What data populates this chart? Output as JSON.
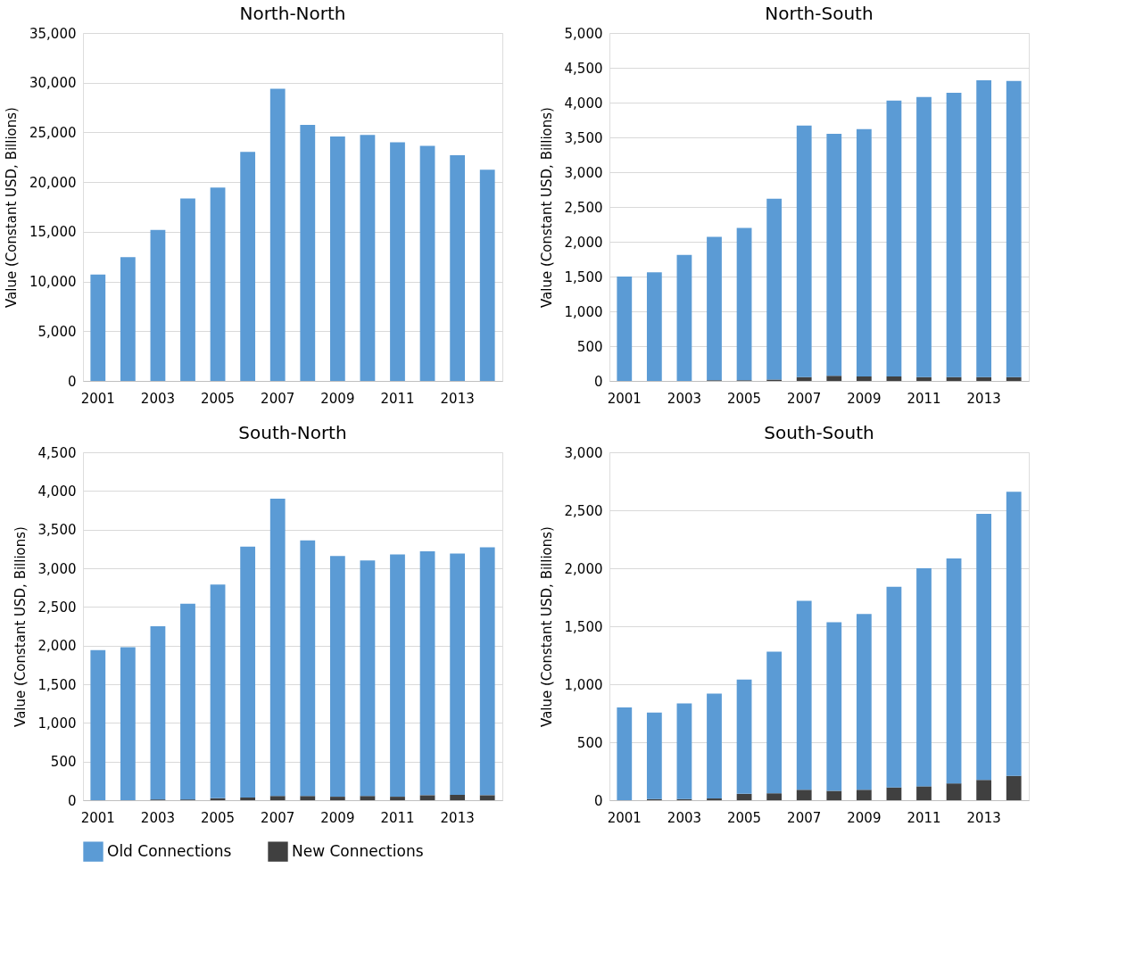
{
  "chart_data": [
    {
      "type": "bar",
      "title": "North-North",
      "ylabel": "Value (Constant USD, Billions)",
      "stacked": true,
      "grid": "y",
      "legend": "bottom",
      "categories": [
        "2001",
        null,
        "2003",
        null,
        "2005",
        null,
        "2007",
        null,
        "2009",
        null,
        "2011",
        null,
        "2013",
        null
      ],
      "ylim": [
        0,
        35000
      ],
      "yticks": [
        0,
        {
          "value": 5000,
          "label": "5,000"
        },
        {
          "value": 10000,
          "label": "10,000"
        },
        {
          "value": 15000,
          "label": "15,000"
        },
        {
          "value": 20000,
          "label": "20,000"
        },
        {
          "value": 25000,
          "label": "25,000"
        },
        {
          "value": 30000,
          "label": "30,000"
        },
        {
          "value": 35000,
          "label": "35,000"
        }
      ],
      "series": [
        {
          "name": "Old Connections",
          "color": "#5b9bd5",
          "values": [
            10700,
            12450,
            15200,
            18350,
            19450,
            23050,
            29400,
            25750,
            24600,
            24750,
            24000,
            23650,
            22700,
            21250
          ]
        }
      ]
    },
    {
      "type": "bar",
      "title": "North-South",
      "ylabel": "Value (Constant USD, Billions)",
      "stacked": true,
      "grid": "y",
      "legend": "bottom",
      "categories": [
        "2001",
        null,
        "2003",
        null,
        "2005",
        null,
        "2007",
        null,
        "2009",
        null,
        "2011",
        null,
        "2013",
        null
      ],
      "ylim": [
        0,
        5000
      ],
      "yticks": [
        0,
        500,
        {
          "value": 1000,
          "label": "1,000"
        },
        {
          "value": 1500,
          "label": "1,500"
        },
        {
          "value": 2000,
          "label": "2,000"
        },
        {
          "value": 2500,
          "label": "2,500"
        },
        {
          "value": 3000,
          "label": "3,000"
        },
        {
          "value": 3500,
          "label": "3,500"
        },
        {
          "value": 4000,
          "label": "4,000"
        },
        {
          "value": 4500,
          "label": "4,500"
        },
        {
          "value": 5000,
          "label": "5,000"
        }
      ],
      "series": [
        {
          "name": "New Connections",
          "color": "#404040",
          "values": [
            0,
            0,
            0,
            10,
            10,
            20,
            55,
            75,
            65,
            65,
            55,
            55,
            55,
            55
          ]
        },
        {
          "name": "Old Connections",
          "color": "#5b9bd5",
          "values": [
            1500,
            1560,
            1810,
            2060,
            2190,
            2600,
            3615,
            3475,
            3555,
            3965,
            4025,
            4085,
            4265,
            4255
          ]
        }
      ]
    },
    {
      "type": "bar",
      "title": "South-North",
      "ylabel": "Value (Constant USD, Billions)",
      "stacked": true,
      "grid": "y",
      "legend": "bottom",
      "categories": [
        "2001",
        null,
        "2003",
        null,
        "2005",
        null,
        "2007",
        null,
        "2009",
        null,
        "2011",
        null,
        "2013",
        null
      ],
      "ylim": [
        0,
        4500
      ],
      "yticks": [
        0,
        500,
        {
          "value": 1000,
          "label": "1,000"
        },
        {
          "value": 1500,
          "label": "1,500"
        },
        {
          "value": 2000,
          "label": "2,000"
        },
        {
          "value": 2500,
          "label": "2,500"
        },
        {
          "value": 3000,
          "label": "3,000"
        },
        {
          "value": 3500,
          "label": "3,500"
        },
        {
          "value": 4000,
          "label": "4,000"
        },
        {
          "value": 4500,
          "label": "4,500"
        }
      ],
      "series": [
        {
          "name": "New Connections",
          "color": "#404040",
          "values": [
            0,
            0,
            10,
            10,
            25,
            35,
            55,
            55,
            45,
            55,
            45,
            65,
            70,
            65
          ]
        },
        {
          "name": "Old Connections",
          "color": "#5b9bd5",
          "values": [
            1940,
            1980,
            2240,
            2530,
            2765,
            3245,
            3845,
            3305,
            3115,
            3045,
            3135,
            3155,
            3120,
            3205
          ]
        }
      ]
    },
    {
      "type": "bar",
      "title": "South-South",
      "ylabel": "Value (Constant USD, Billions)",
      "stacked": true,
      "grid": "y",
      "legend": "bottom",
      "categories": [
        "2001",
        null,
        "2003",
        null,
        "2005",
        null,
        "2007",
        null,
        "2009",
        null,
        "2011",
        null,
        "2013",
        null
      ],
      "ylim": [
        0,
        3000
      ],
      "yticks": [
        0,
        500,
        {
          "value": 1000,
          "label": "1,000"
        },
        {
          "value": 1500,
          "label": "1,500"
        },
        {
          "value": 2000,
          "label": "2,000"
        },
        {
          "value": 2500,
          "label": "2,500"
        },
        {
          "value": 3000,
          "label": "3,000"
        }
      ],
      "series": [
        {
          "name": "New Connections",
          "color": "#404040",
          "values": [
            0,
            10,
            10,
            15,
            55,
            60,
            90,
            80,
            90,
            110,
            120,
            145,
            175,
            210
          ]
        },
        {
          "name": "Old Connections",
          "color": "#5b9bd5",
          "values": [
            800,
            745,
            825,
            905,
            985,
            1220,
            1630,
            1455,
            1515,
            1730,
            1880,
            1940,
            2295,
            2450
          ]
        }
      ]
    }
  ]
}
